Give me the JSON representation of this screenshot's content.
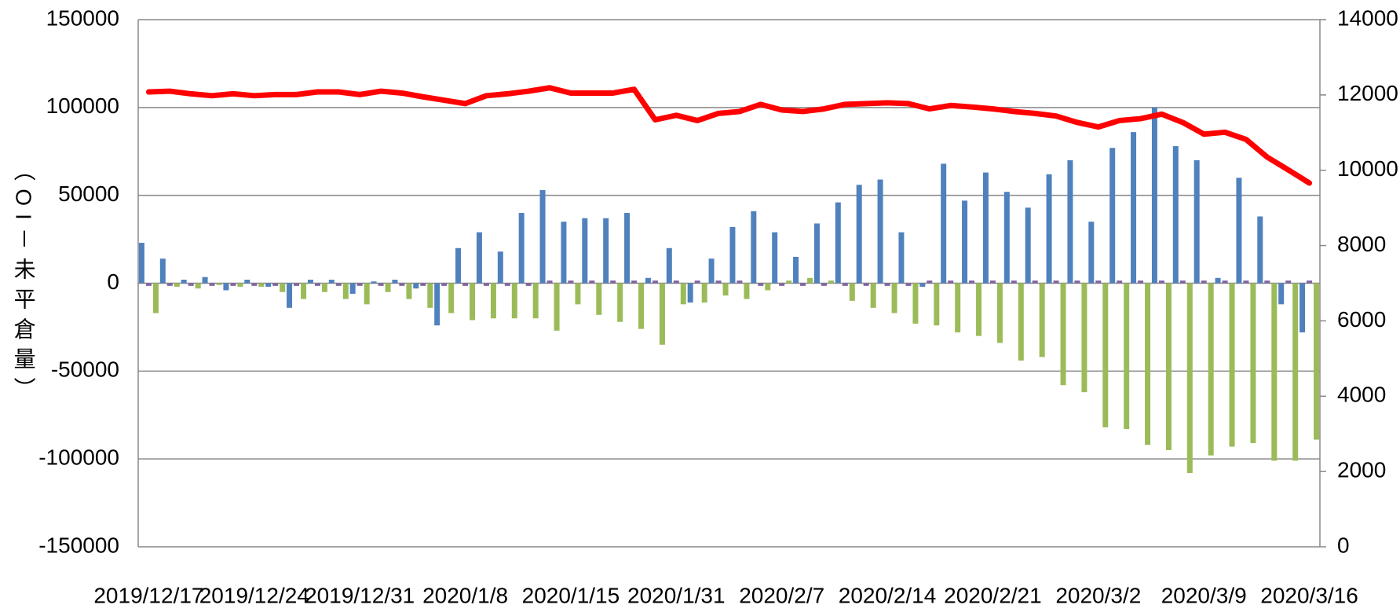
{
  "chart_data": {
    "type": "bar-line",
    "y_axis_label": "（OI－未平倉量）",
    "categories": [
      "2019/12/17",
      null,
      null,
      null,
      null,
      "2019/12/24",
      null,
      null,
      null,
      null,
      "2019/12/31",
      null,
      null,
      null,
      null,
      "2020/1/8",
      null,
      null,
      null,
      null,
      "2020/1/15",
      null,
      null,
      null,
      null,
      "2020/1/31",
      null,
      null,
      null,
      null,
      "2020/2/7",
      null,
      null,
      null,
      null,
      "2020/2/14",
      null,
      null,
      null,
      null,
      "2020/2/21",
      null,
      null,
      null,
      null,
      "2020/3/2",
      null,
      null,
      null,
      null,
      "2020/3/9",
      null,
      null,
      null,
      null,
      "2020/3/16"
    ],
    "series": [
      {
        "type": "bar",
        "color": "#4f81bd",
        "values": [
          23000,
          14000,
          2000,
          3500,
          -4000,
          2000,
          -2000,
          -14000,
          2000,
          2000,
          -6000,
          1000,
          2000,
          -3000,
          -24000,
          20000,
          29000,
          18000,
          40000,
          53000,
          35000,
          37000,
          37000,
          40000,
          3000,
          20000,
          -11000,
          14000,
          32000,
          41000,
          29000,
          15000,
          34000,
          46000,
          56000,
          59000,
          29000,
          -2000,
          68000,
          47000,
          63000,
          52000,
          43000,
          62000,
          70000,
          35000,
          77000,
          86000,
          100000,
          78000,
          70000,
          3000,
          60000,
          38000,
          -12000,
          -28000
        ]
      },
      {
        "type": "bar",
        "color": "#8064a2",
        "values": [
          -1500,
          -1500,
          -1500,
          -1500,
          -1500,
          -1500,
          -1500,
          -1500,
          -1500,
          -1500,
          -1500,
          -1500,
          -1500,
          -1500,
          -1500,
          -1500,
          -1500,
          -1500,
          -1500,
          1500,
          1500,
          1500,
          1500,
          1500,
          1500,
          1500,
          1500,
          1500,
          1500,
          -1500,
          -1500,
          -1500,
          -1500,
          -1500,
          -1500,
          -1500,
          -1500,
          1500,
          1500,
          1500,
          1500,
          1500,
          1500,
          1500,
          1500,
          1500,
          1500,
          1500,
          1500,
          1500,
          1500,
          1500,
          1500,
          1500,
          1500,
          1500
        ]
      },
      {
        "type": "bar",
        "color": "#9bbb59",
        "values": [
          -17000,
          -2000,
          -3000,
          -1000,
          -2000,
          -2000,
          -5000,
          -9000,
          -5000,
          -9000,
          -12000,
          -5000,
          -9000,
          -14000,
          -17000,
          -21000,
          -20000,
          -20000,
          -20000,
          -27000,
          -12000,
          -18000,
          -22000,
          -26000,
          -35000,
          -12000,
          -11000,
          -7000,
          -9000,
          -4000,
          1500,
          3000,
          1500,
          -10000,
          -14000,
          -17000,
          -23000,
          -24000,
          -28000,
          -30000,
          -34000,
          -44000,
          -42000,
          -58000,
          -62000,
          -82000,
          -83000,
          -92000,
          -95000,
          -108000,
          -98000,
          -93000,
          -91000,
          -101000,
          -101000,
          -89000
        ]
      },
      {
        "type": "line",
        "axis": "y2",
        "color": "#ff0000",
        "values": [
          12080,
          12100,
          12030,
          11980,
          12030,
          11980,
          12010,
          12010,
          12080,
          12080,
          12010,
          12100,
          12050,
          11950,
          11860,
          11770,
          11980,
          12030,
          12100,
          12190,
          12050,
          12050,
          12050,
          12150,
          11340,
          11460,
          11320,
          11510,
          11560,
          11750,
          11600,
          11560,
          11630,
          11750,
          11770,
          11790,
          11770,
          11630,
          11720,
          11680,
          11630,
          11560,
          11510,
          11440,
          11270,
          11150,
          11320,
          11370,
          11490,
          11270,
          10960,
          11010,
          10820,
          10350,
          10010,
          9660
        ]
      }
    ],
    "ylim": [
      -150000,
      150000
    ],
    "yticks": [
      -150000,
      -100000,
      -50000,
      0,
      50000,
      100000,
      150000
    ],
    "y2lim": [
      0,
      14000
    ],
    "y2ticks": [
      0,
      2000,
      4000,
      6000,
      8000,
      10000,
      12000,
      14000
    ],
    "grid": true
  }
}
